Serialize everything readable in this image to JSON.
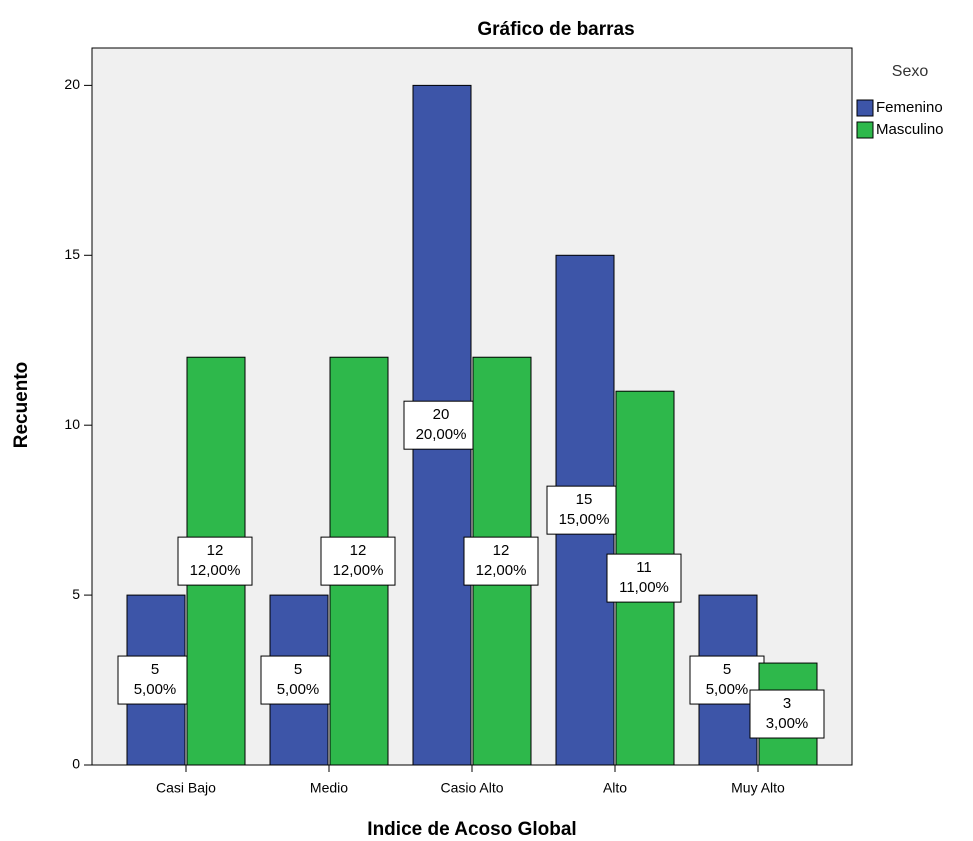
{
  "chart_data": {
    "type": "bar",
    "title": "Gráfico de barras",
    "x_label": "Indice de Acoso Global",
    "y_label": "Recuento",
    "legend_title": "Sexo",
    "legend_position": "right",
    "categories": [
      "Casi Bajo",
      "Medio",
      "Casio Alto",
      "Alto",
      "Muy Alto"
    ],
    "series": [
      {
        "name": "Femenino",
        "color": "#3d55a8",
        "values": [
          5,
          5,
          20,
          15,
          5
        ],
        "percent_labels": [
          "5,00%",
          "5,00%",
          "20,00%",
          "15,00%",
          "5,00%"
        ]
      },
      {
        "name": "Masculino",
        "color": "#2eb84b",
        "values": [
          12,
          12,
          12,
          11,
          3
        ],
        "percent_labels": [
          "12,00%",
          "12,00%",
          "12,00%",
          "11,00%",
          "3,00%"
        ]
      }
    ],
    "ylim": [
      0,
      21.1
    ],
    "yticks": [
      0,
      5,
      10,
      15,
      20
    ],
    "grid": false
  }
}
